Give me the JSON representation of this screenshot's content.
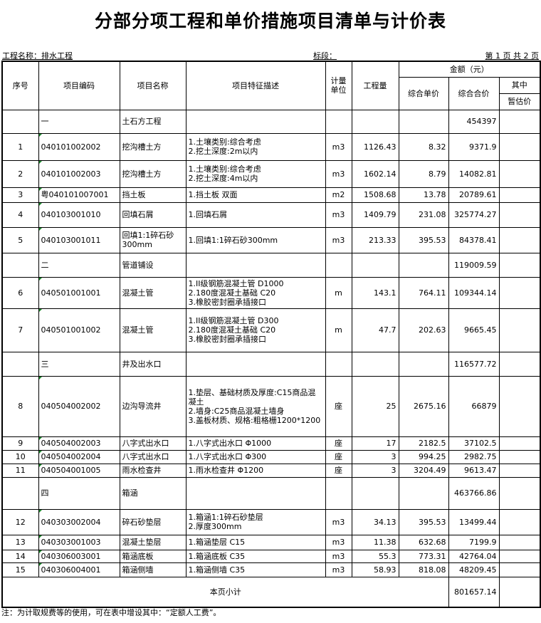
{
  "title": "分部分项工程和单价措施项目清单与计价表",
  "project_label": "工程名称：排水工程",
  "section_label": "标段：",
  "page_label": "第 1 页  共 2 页",
  "headers": {
    "no": "序号",
    "code": "项目编码",
    "name": "项目名称",
    "desc": "项目特征描述",
    "unit": "计量单位",
    "qty": "工程量",
    "amount": "金额（元）",
    "unit_price": "综合单价",
    "total": "综合合价",
    "of_which": "其中",
    "provisional": "暂估价"
  },
  "rows": [
    {
      "type": "group",
      "code": "一",
      "name": "土石方工程",
      "total": "454397"
    },
    {
      "no": "1",
      "code": "040101002002",
      "name": "挖沟槽土方",
      "desc": "1.土壤类别:综合考虑\n2.挖土深度:2m以内",
      "unit": "m3",
      "qty": "1126.43",
      "price": "8.32",
      "total": "9371.9"
    },
    {
      "no": "2",
      "code": "040101002003",
      "name": "挖沟槽土方",
      "desc": "1.土壤类别:综合考虑\n2.挖土深度:4m以内",
      "unit": "m3",
      "qty": "1602.14",
      "price": "8.79",
      "total": "14082.81"
    },
    {
      "no": "3",
      "code": "粤040101007001",
      "name": "挡土板",
      "desc": "1.挡土板 双面",
      "unit": "m2",
      "qty": "1508.68",
      "price": "13.78",
      "total": "20789.61"
    },
    {
      "no": "4",
      "code": "040103001010",
      "name": "回填石屑",
      "desc": "1.回填石屑",
      "unit": "m3",
      "qty": "1409.79",
      "price": "231.08",
      "total": "325774.27"
    },
    {
      "no": "5",
      "code": "040103001011",
      "name": "回填1:1碎石砂300mm",
      "desc": "1.回填1:1碎石砂300mm",
      "unit": "m3",
      "qty": "213.33",
      "price": "395.53",
      "total": "84378.41"
    },
    {
      "type": "group",
      "code": "二",
      "name": "管道铺设",
      "total": "119009.59"
    },
    {
      "no": "6",
      "code": "040501001001",
      "name": "混凝土管",
      "desc": "1.II级钢筋混凝土管 D1000\n2.180度混凝土基础 C20\n3.橡胶密封圈承插接口",
      "unit": "m",
      "qty": "143.1",
      "price": "764.11",
      "total": "109344.14"
    },
    {
      "no": "7",
      "code": "040501001002",
      "name": "混凝土管",
      "desc": "1.II级钢筋混凝土管 D300\n2.180度混凝土基础 C20\n3.橡胶密封圈承插接口",
      "unit": "m",
      "qty": "47.7",
      "price": "202.63",
      "total": "9665.45"
    },
    {
      "type": "group",
      "code": "三",
      "name": "井及出水口",
      "total": "116577.72"
    },
    {
      "no": "8",
      "code": "040504002002",
      "name": "边沟导流井",
      "desc": "1.垫层、基础材质及厚度:C15商品混凝土\n2.墙身:C25商品混凝土墙身\n3.盖板材质、规格:粗格栅1200*1200",
      "unit": "座",
      "qty": "25",
      "price": "2675.16",
      "total": "66879"
    },
    {
      "no": "9",
      "code": "040504002003",
      "name": "八字式出水口",
      "desc": "1.八字式出水口  Φ1000",
      "unit": "座",
      "qty": "17",
      "price": "2182.5",
      "total": "37102.5"
    },
    {
      "no": "10",
      "code": "040504002004",
      "name": "八字式出水口",
      "desc": "1.八字式出水口  Φ300",
      "unit": "座",
      "qty": "3",
      "price": "994.25",
      "total": "2982.75"
    },
    {
      "no": "11",
      "code": "040504001005",
      "name": "雨水检查井",
      "desc": "1.雨水检查井  Φ1200",
      "unit": "座",
      "qty": "3",
      "price": "3204.49",
      "total": "9613.47"
    },
    {
      "type": "group",
      "code": "四",
      "name": "箱涵",
      "total": "463766.86"
    },
    {
      "no": "12",
      "code": "040303002004",
      "name": "碎石砂垫层",
      "desc": "1.箱涵1:1碎石砂垫层\n2.厚度300mm",
      "unit": "m3",
      "qty": "34.13",
      "price": "395.53",
      "total": "13499.44"
    },
    {
      "no": "13",
      "code": "040303001003",
      "name": "混凝土垫层",
      "desc": "1.箱涵垫层 C15",
      "unit": "m3",
      "qty": "11.38",
      "price": "632.68",
      "total": "7199.9"
    },
    {
      "no": "14",
      "code": "040306003001",
      "name": "箱涵底板",
      "desc": "1.箱涵底板 C35",
      "unit": "m3",
      "qty": "55.3",
      "price": "773.31",
      "total": "42764.04"
    },
    {
      "no": "15",
      "code": "040306004001",
      "name": "箱涵侧墙",
      "desc": "1.箱涵侧墙 C35",
      "unit": "m3",
      "qty": "58.93",
      "price": "818.08",
      "total": "48209.45"
    }
  ],
  "subtotal": {
    "label": "本页小计",
    "total": "801657.14"
  },
  "note": "注：为计取规费等的使用，可在表中增设其中：“定额人工费”。"
}
